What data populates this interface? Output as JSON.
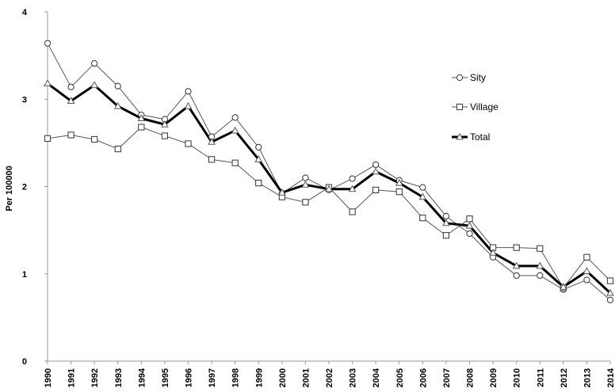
{
  "chart_data": {
    "type": "line",
    "ylabel": "Per 100000",
    "ylim": [
      0,
      4
    ],
    "yticks": [
      0,
      1,
      2,
      3,
      4
    ],
    "grid": false,
    "legend_position": "right",
    "x": [
      "1990",
      "1991",
      "1992",
      "1993",
      "1994",
      "1995",
      "1996",
      "1997",
      "1998",
      "1999",
      "2000",
      "2001",
      "2002",
      "2003",
      "2004",
      "2005",
      "2006",
      "2007",
      "2008",
      "2009",
      "2010",
      "2011",
      "2012",
      "2013",
      "2014"
    ],
    "series": [
      {
        "name": "Sity",
        "marker": "circle",
        "color": "#555555",
        "values": [
          3.64,
          3.14,
          3.41,
          3.15,
          2.82,
          2.77,
          3.09,
          2.57,
          2.79,
          2.45,
          1.92,
          2.1,
          1.96,
          2.09,
          2.25,
          2.07,
          1.99,
          1.66,
          1.46,
          1.19,
          0.98,
          0.98,
          0.82,
          0.93,
          0.7
        ]
      },
      {
        "name": "Village",
        "marker": "square",
        "color": "#555555",
        "values": [
          2.55,
          2.59,
          2.54,
          2.43,
          2.68,
          2.58,
          2.49,
          2.31,
          2.27,
          2.04,
          1.88,
          1.82,
          1.99,
          1.71,
          1.96,
          1.94,
          1.64,
          1.44,
          1.63,
          1.3,
          1.3,
          1.29,
          0.84,
          1.19,
          0.92
        ]
      },
      {
        "name": "Total",
        "marker": "triangle",
        "color": "#000000",
        "values": [
          3.18,
          2.98,
          3.16,
          2.92,
          2.78,
          2.71,
          2.92,
          2.51,
          2.64,
          2.31,
          1.93,
          2.02,
          1.97,
          1.97,
          2.17,
          2.04,
          1.88,
          1.58,
          1.55,
          1.24,
          1.09,
          1.09,
          0.85,
          1.03,
          0.78
        ]
      }
    ]
  }
}
